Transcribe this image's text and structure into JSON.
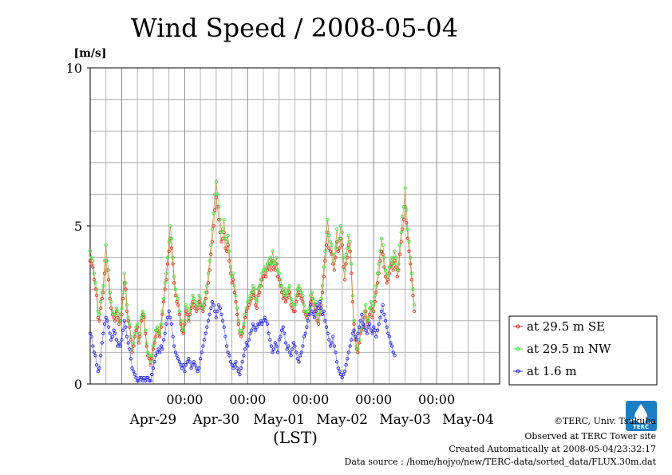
{
  "chart_data": {
    "type": "line",
    "title": "Wind Speed / 2008-05-04",
    "ylabel": "[m/s]",
    "xlabel": "(LST)",
    "ylim": [
      0,
      10
    ],
    "yticks": [
      "0",
      "5",
      "10"
    ],
    "xlim": [
      "2008-04-28T12:00",
      "2008-05-04T24:00"
    ],
    "time_labels": [
      "00:00",
      "00:00",
      "00:00",
      "00:00",
      "00:00"
    ],
    "date_labels": [
      "Apr-29",
      "Apr-30",
      "May-01",
      "May-02",
      "May-03",
      "May-04"
    ],
    "grid": true,
    "legend_position": "right",
    "x_step_hours": 0.5,
    "series": [
      {
        "name": "at 29.5 m SE",
        "color": "#e8302a",
        "values": [
          3.9,
          3.8,
          3.7,
          3.3,
          3.0,
          2.8,
          2.1,
          2.0,
          2.4,
          2.7,
          2.9,
          3.5,
          3.9,
          3.6,
          3.3,
          2.7,
          2.4,
          2.2,
          2.1,
          2.0,
          2.3,
          2.1,
          1.9,
          2.0,
          2.2,
          2.7,
          3.2,
          3.0,
          2.3,
          2.0,
          1.8,
          1.4,
          1.0,
          1.2,
          1.5,
          1.7,
          1.8,
          1.3,
          1.5,
          2.0,
          2.2,
          2.1,
          1.6,
          1.2,
          0.9,
          0.8,
          0.6,
          0.8,
          1.1,
          1.3,
          1.5,
          1.7,
          1.6,
          1.5,
          1.8,
          2.2,
          2.6,
          3.0,
          3.3,
          3.8,
          4.2,
          4.6,
          4.3,
          3.8,
          3.2,
          2.8,
          2.6,
          2.5,
          2.2,
          1.9,
          1.7,
          1.6,
          1.9,
          2.3,
          2.2,
          2.0,
          2.2,
          2.4,
          2.6,
          2.5,
          2.4,
          2.3,
          2.4,
          2.6,
          2.5,
          2.4,
          2.3,
          2.5,
          2.7,
          2.9,
          3.2,
          3.6,
          4.1,
          4.5,
          5.0,
          5.5,
          5.9,
          5.6,
          5.2,
          4.8,
          4.5,
          4.6,
          4.8,
          4.3,
          4.2,
          4.4,
          3.9,
          3.5,
          3.2,
          3.3,
          2.9,
          2.6,
          2.2,
          1.9,
          1.6,
          1.5,
          1.6,
          1.8,
          2.1,
          2.3,
          2.4,
          2.5,
          2.6,
          2.7,
          2.9,
          2.8,
          2.5,
          2.4,
          2.8,
          2.9,
          3.1,
          3.3,
          3.4,
          3.5,
          3.4,
          3.6,
          3.7,
          3.8,
          3.6,
          3.9,
          3.7,
          3.6,
          3.8,
          3.4,
          3.3,
          3.1,
          2.9,
          2.7,
          2.8,
          2.6,
          2.7,
          2.8,
          2.9,
          2.5,
          2.4,
          2.3,
          2.3,
          2.6,
          2.8,
          2.9,
          2.8,
          2.7,
          2.6,
          2.3,
          2.2,
          2.1,
          2.2,
          2.2,
          2.6,
          2.7,
          2.5,
          2.3,
          2.4,
          2.0,
          1.9,
          2.2,
          2.5,
          2.9,
          3.4,
          3.9,
          4.4,
          4.8,
          4.3,
          4.2,
          4.1,
          3.8,
          3.6,
          4.0,
          4.5,
          4.2,
          4.3,
          4.6,
          4.4,
          3.7,
          3.3,
          3.8,
          4.0,
          4.4,
          4.2,
          3.5,
          2.6,
          1.9,
          1.4,
          1.1,
          1.0,
          1.3,
          1.6,
          1.7,
          1.8,
          2.1,
          2.3,
          1.9,
          2.0,
          2.2,
          2.4,
          2.1,
          2.3,
          2.6,
          2.9,
          3.2,
          3.5,
          3.9,
          4.2,
          4.1,
          3.7,
          3.4,
          3.2,
          3.3,
          3.5,
          3.7,
          3.8,
          3.6,
          3.9,
          3.7,
          3.4,
          3.6,
          4.1,
          4.5,
          4.9,
          5.2,
          5.6,
          5.1,
          4.6,
          4.2,
          3.8,
          3.3,
          2.8,
          2.3
        ]
      },
      {
        "name": "at 29.5 m NW",
        "color": "#38e838",
        "values": [
          4.2,
          4.0,
          3.9,
          3.5,
          3.2,
          3.0,
          2.3,
          2.2,
          2.6,
          2.9,
          3.1,
          3.9,
          4.4,
          3.9,
          3.6,
          2.9,
          2.6,
          2.3,
          2.2,
          2.2,
          2.4,
          2.3,
          2.0,
          2.2,
          2.4,
          2.9,
          3.5,
          3.2,
          2.5,
          2.1,
          1.9,
          1.5,
          1.1,
          1.3,
          1.6,
          1.8,
          1.9,
          1.4,
          1.6,
          2.1,
          2.3,
          2.2,
          1.7,
          1.3,
          1.0,
          0.9,
          0.7,
          0.9,
          1.2,
          1.4,
          1.7,
          1.8,
          1.7,
          1.6,
          1.9,
          2.3,
          2.7,
          3.2,
          3.5,
          4.0,
          4.5,
          5.0,
          4.6,
          4.0,
          3.4,
          3.0,
          2.8,
          2.7,
          2.3,
          2.0,
          1.8,
          1.7,
          2.0,
          2.5,
          2.4,
          2.1,
          2.3,
          2.5,
          2.8,
          2.7,
          2.6,
          2.4,
          2.5,
          2.8,
          2.7,
          2.5,
          2.4,
          2.6,
          2.9,
          3.1,
          3.5,
          3.9,
          4.4,
          4.9,
          5.4,
          6.0,
          6.4,
          6.0,
          5.6,
          5.2,
          4.8,
          4.9,
          5.2,
          4.6,
          4.5,
          4.7,
          4.2,
          3.7,
          3.4,
          3.5,
          3.1,
          2.8,
          2.4,
          2.0,
          1.7,
          1.6,
          1.7,
          1.9,
          2.2,
          2.4,
          2.6,
          2.7,
          2.8,
          2.9,
          3.1,
          3.0,
          2.7,
          2.6,
          3.0,
          3.1,
          3.3,
          3.5,
          3.6,
          3.7,
          3.6,
          3.8,
          3.9,
          4.0,
          3.8,
          4.2,
          3.9,
          3.8,
          4.0,
          3.6,
          3.5,
          3.3,
          3.1,
          2.9,
          3.0,
          2.8,
          2.9,
          3.0,
          3.1,
          2.7,
          2.6,
          2.5,
          2.5,
          2.8,
          3.0,
          3.1,
          3.0,
          2.9,
          2.8,
          2.5,
          2.3,
          2.2,
          2.3,
          2.4,
          2.8,
          2.9,
          2.7,
          2.5,
          2.6,
          2.2,
          2.0,
          2.3,
          2.7,
          3.1,
          3.7,
          4.2,
          4.8,
          5.2,
          4.7,
          4.5,
          4.4,
          4.1,
          3.9,
          4.3,
          4.9,
          4.5,
          4.6,
          5.0,
          4.8,
          4.0,
          3.6,
          4.1,
          4.3,
          4.7,
          4.5,
          3.8,
          2.8,
          2.0,
          1.5,
          1.2,
          1.1,
          1.4,
          1.7,
          1.8,
          1.9,
          2.3,
          2.5,
          2.0,
          2.1,
          2.4,
          2.6,
          2.3,
          2.5,
          2.8,
          3.1,
          3.5,
          3.8,
          4.2,
          4.6,
          4.4,
          4.0,
          3.6,
          3.4,
          3.5,
          3.7,
          3.9,
          4.0,
          3.8,
          4.2,
          4.0,
          3.6,
          3.8,
          4.4,
          4.8,
          5.3,
          5.6,
          6.2,
          5.5,
          4.9,
          4.5,
          4.0,
          3.5,
          3.0,
          2.5
        ]
      },
      {
        "name": "at 1.6 m",
        "color": "#2a2ae8",
        "values": [
          1.6,
          1.5,
          1.2,
          1.0,
          0.9,
          0.6,
          0.4,
          0.5,
          0.9,
          1.3,
          1.6,
          1.9,
          2.1,
          2.0,
          1.8,
          1.6,
          1.4,
          1.5,
          1.7,
          1.6,
          1.4,
          1.2,
          1.3,
          1.2,
          1.4,
          1.7,
          2.0,
          1.8,
          1.5,
          1.3,
          1.1,
          0.8,
          0.5,
          0.4,
          0.3,
          0.2,
          0.1,
          0.1,
          0.2,
          0.2,
          0.1,
          0.2,
          0.1,
          0.2,
          0.2,
          0.1,
          0.1,
          0.3,
          0.5,
          0.7,
          0.9,
          1.0,
          1.1,
          1.0,
          1.2,
          1.1,
          1.4,
          1.6,
          1.9,
          2.1,
          2.3,
          2.1,
          1.9,
          1.5,
          1.2,
          1.0,
          0.9,
          0.8,
          0.7,
          0.6,
          0.5,
          0.6,
          0.4,
          0.6,
          0.7,
          0.8,
          0.7,
          0.5,
          0.6,
          0.7,
          0.6,
          0.5,
          0.4,
          0.5,
          0.8,
          1.0,
          1.2,
          1.4,
          1.6,
          1.8,
          2.0,
          2.2,
          2.4,
          2.6,
          2.5,
          2.3,
          2.1,
          2.3,
          2.5,
          2.4,
          2.2,
          2.0,
          1.8,
          1.5,
          1.2,
          1.0,
          0.9,
          0.7,
          0.6,
          0.5,
          0.6,
          0.7,
          0.5,
          0.4,
          0.3,
          0.5,
          0.7,
          0.9,
          1.1,
          1.3,
          1.2,
          1.4,
          1.6,
          1.7,
          1.9,
          1.8,
          1.7,
          1.8,
          1.9,
          1.9,
          2.0,
          1.9,
          2.0,
          2.1,
          2.0,
          1.9,
          1.6,
          1.4,
          1.2,
          1.0,
          1.1,
          1.3,
          1.2,
          1.0,
          1.4,
          1.5,
          1.7,
          1.8,
          1.6,
          1.3,
          1.1,
          1.2,
          1.0,
          0.9,
          1.1,
          1.3,
          1.2,
          1.0,
          0.8,
          0.7,
          0.9,
          1.0,
          1.2,
          1.5,
          1.6,
          1.8,
          2.0,
          2.2,
          2.5,
          2.3,
          2.2,
          2.1,
          2.3,
          2.5,
          2.4,
          2.6,
          2.4,
          2.2,
          2.3,
          2.0,
          1.8,
          1.6,
          1.4,
          1.2,
          1.3,
          1.5,
          1.2,
          1.0,
          0.7,
          0.5,
          0.4,
          0.3,
          0.2,
          0.3,
          0.4,
          0.6,
          0.8,
          1.0,
          1.2,
          1.4,
          1.6,
          1.7,
          1.5,
          1.4,
          1.6,
          1.8,
          2.0,
          2.2,
          1.9,
          1.8,
          1.7,
          1.6,
          1.8,
          1.9,
          1.7,
          1.6,
          1.8,
          1.7,
          1.5,
          1.7,
          1.9,
          2.1,
          2.3,
          2.5,
          2.2,
          2.0,
          1.8,
          1.6,
          1.5,
          1.3,
          1.2,
          1.0,
          0.9
        ]
      }
    ]
  },
  "credits": {
    "copyright": "©TERC, Univ. Tsukuba",
    "observed": "Observed at TERC Tower site",
    "created": "Created Automatically at 2008-05-04/23:32:17",
    "source": "Data source : /home/hojyo/new/TERC-data/sorted_data/FLUX.30m.dat"
  },
  "logo": {
    "label": "TERC",
    "color": "#1a7ec4"
  }
}
